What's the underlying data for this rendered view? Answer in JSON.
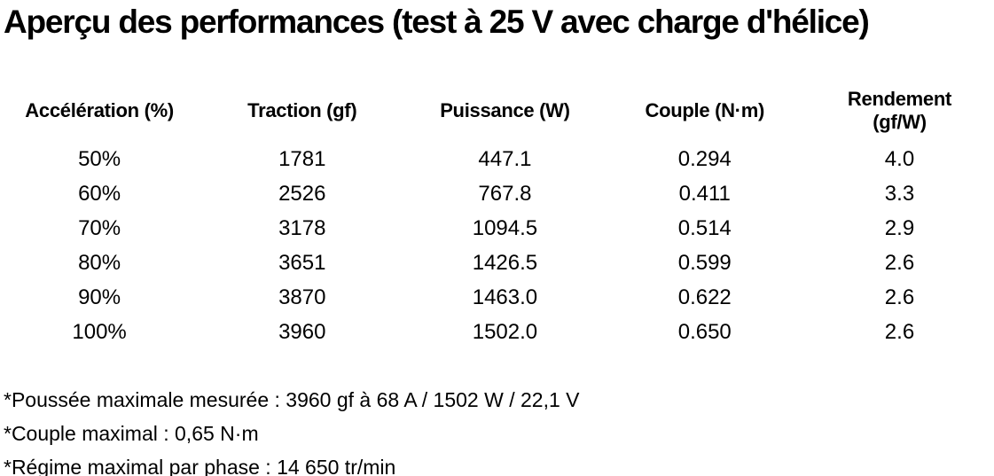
{
  "title": "Aperçu des performances (test à 25 V avec charge d'hélice)",
  "colors": {
    "text": "#000000",
    "background": "#ffffff"
  },
  "table": {
    "columns": [
      {
        "label": "Accélération (%)"
      },
      {
        "label": "Traction (gf)"
      },
      {
        "label": "Puissance (W)"
      },
      {
        "label": "Couple (N·m)"
      },
      {
        "label": "Rendement",
        "label_line2": "(gf/W)"
      }
    ],
    "rows": [
      [
        "50%",
        "1781",
        "447.1",
        "0.294",
        "4.0"
      ],
      [
        "60%",
        "2526",
        "767.8",
        "0.411",
        "3.3"
      ],
      [
        "70%",
        "3178",
        "1094.5",
        "0.514",
        "2.9"
      ],
      [
        "80%",
        "3651",
        "1426.5",
        "0.599",
        "2.6"
      ],
      [
        "90%",
        "3870",
        "1463.0",
        "0.622",
        "2.6"
      ],
      [
        "100%",
        "3960",
        "1502.0",
        "0.650",
        "2.6"
      ]
    ]
  },
  "footnotes": [
    "*Poussée maximale mesurée : 3960 gf à 68 A / 1502 W / 22,1 V",
    "*Couple maximal : 0,65 N·m",
    "*Régime maximal par phase : 14 650 tr/min"
  ],
  "chart_data": {
    "type": "table",
    "title": "Aperçu des performances (test à 25 V avec charge d'hélice)",
    "columns": [
      "Accélération (%)",
      "Traction (gf)",
      "Puissance (W)",
      "Couple (N·m)",
      "Rendement (gf/W)"
    ],
    "rows": [
      [
        "50%",
        1781,
        447.1,
        0.294,
        4.0
      ],
      [
        "60%",
        2526,
        767.8,
        0.411,
        3.3
      ],
      [
        "70%",
        3178,
        1094.5,
        0.514,
        2.9
      ],
      [
        "80%",
        3651,
        1426.5,
        0.599,
        2.6
      ],
      [
        "90%",
        3870,
        1463.0,
        0.622,
        2.6
      ],
      [
        "100%",
        3960,
        1502.0,
        0.65,
        2.6
      ]
    ],
    "notes": [
      "*Poussée maximale mesurée : 3960 gf à 68 A / 1502 W / 22,1 V",
      "*Couple maximal : 0,65 N·m",
      "*Régime maximal par phase : 14 650 tr/min"
    ]
  }
}
